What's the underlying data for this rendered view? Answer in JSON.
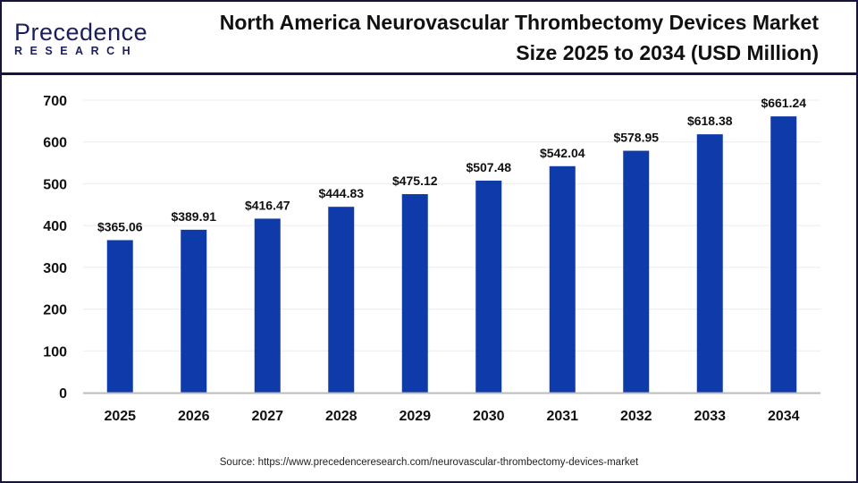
{
  "brand": {
    "logo_line1": "Precedence",
    "logo_line2": "RESEARCH"
  },
  "title": "North America Neurovascular Thrombectomy Devices Market Size 2025 to 2034 (USD Million)",
  "source": "Source: https://www.precedenceresearch.com/neurovascular-thrombectomy-devices-market",
  "colors": {
    "bar": "#0f3aa9",
    "frame": "#14143c",
    "grid": "#ececec",
    "axis": "#bbbbbb"
  },
  "chart_data": {
    "type": "bar",
    "title": "North America Neurovascular Thrombectomy Devices Market Size 2025 to 2034 (USD Million)",
    "xlabel": "",
    "ylabel": "",
    "categories": [
      "2025",
      "2026",
      "2027",
      "2028",
      "2029",
      "2030",
      "2031",
      "2032",
      "2033",
      "2034"
    ],
    "values": [
      365.06,
      389.91,
      416.47,
      444.83,
      475.12,
      507.48,
      542.04,
      578.95,
      618.38,
      661.24
    ],
    "data_labels": [
      "$365.06",
      "$389.91",
      "$416.47",
      "$444.83",
      "$475.12",
      "$507.48",
      "$542.04",
      "$578.95",
      "$618.38",
      "$661.24"
    ],
    "ylim": [
      0,
      700
    ],
    "yticks": [
      "0",
      "100",
      "200",
      "300",
      "400",
      "500",
      "600",
      "700"
    ],
    "grid": true,
    "legend": "none"
  }
}
